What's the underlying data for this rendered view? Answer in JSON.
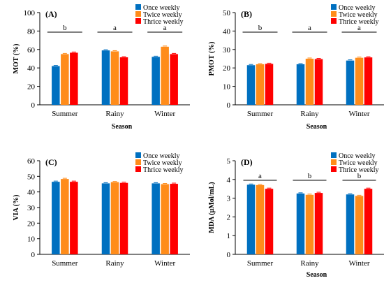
{
  "chart_data": [
    {
      "type": "bar",
      "panel_label": "(A)",
      "categories": [
        "Summer",
        "Rainy",
        "Winter"
      ],
      "series": [
        {
          "name": "Once weekly",
          "color": "#0070c0",
          "values": [
            42,
            59,
            52
          ]
        },
        {
          "name": "Twice weekly",
          "color": "#ff8c1a",
          "values": [
            55,
            58,
            63
          ]
        },
        {
          "name": "Thrice weekly",
          "color": "#ff0000",
          "values": [
            56.5,
            51.5,
            55
          ]
        }
      ],
      "xlabel": "Season",
      "ylabel": "MOT (%)",
      "ylim": [
        0,
        100
      ],
      "yticks": [
        0,
        20,
        40,
        60,
        80,
        100
      ],
      "significance": [
        "b",
        "a",
        "a"
      ],
      "legend_position": "top-right"
    },
    {
      "type": "bar",
      "panel_label": "(B)",
      "categories": [
        "Summer",
        "Rainy",
        "Winter"
      ],
      "series": [
        {
          "name": "Once weekly",
          "color": "#0070c0",
          "values": [
            21.5,
            22,
            24
          ]
        },
        {
          "name": "Twice weekly",
          "color": "#ff8c1a",
          "values": [
            22,
            25,
            25.5
          ]
        },
        {
          "name": "Thrice weekly",
          "color": "#ff0000",
          "values": [
            22.2,
            24.8,
            25.7
          ]
        }
      ],
      "xlabel": "Season",
      "ylabel": "PMOT (%)",
      "ylim": [
        0,
        50
      ],
      "yticks": [
        0,
        10,
        20,
        30,
        40,
        50
      ],
      "significance": [
        "b",
        "a",
        "a"
      ],
      "legend_position": "top-right"
    },
    {
      "type": "bar",
      "panel_label": "(C)",
      "categories": [
        "Summer",
        "Rainy",
        "Winter"
      ],
      "series": [
        {
          "name": "Once weekly",
          "color": "#0070c0",
          "values": [
            46.5,
            45.5,
            45.5
          ]
        },
        {
          "name": "Twice weekly",
          "color": "#ff8c1a",
          "values": [
            48.3,
            46.3,
            45
          ]
        },
        {
          "name": "Thrice weekly",
          "color": "#ff0000",
          "values": [
            46.5,
            45.8,
            45.2
          ]
        }
      ],
      "xlabel": "",
      "ylabel": "VIA (%)",
      "ylim": [
        0,
        60
      ],
      "yticks": [
        0,
        10,
        20,
        30,
        40,
        50,
        60
      ],
      "significance": [],
      "legend_position": "top-right"
    },
    {
      "type": "bar",
      "panel_label": "(D)",
      "categories": [
        "Summer",
        "Rainy",
        "Winter"
      ],
      "series": [
        {
          "name": "Once weekly",
          "color": "#0070c0",
          "values": [
            3.72,
            3.25,
            3.2
          ]
        },
        {
          "name": "Twice weekly",
          "color": "#ff8c1a",
          "values": [
            3.7,
            3.18,
            3.12
          ]
        },
        {
          "name": "Thrice weekly",
          "color": "#ff0000",
          "values": [
            3.5,
            3.28,
            3.5
          ]
        }
      ],
      "xlabel": "Season",
      "ylabel": "MDA (µMol/mL)",
      "ylim": [
        0,
        5
      ],
      "yticks": [
        0,
        1,
        2,
        3,
        4,
        5
      ],
      "significance": [
        "a",
        "b",
        "b"
      ],
      "legend_position": "top-right"
    }
  ]
}
